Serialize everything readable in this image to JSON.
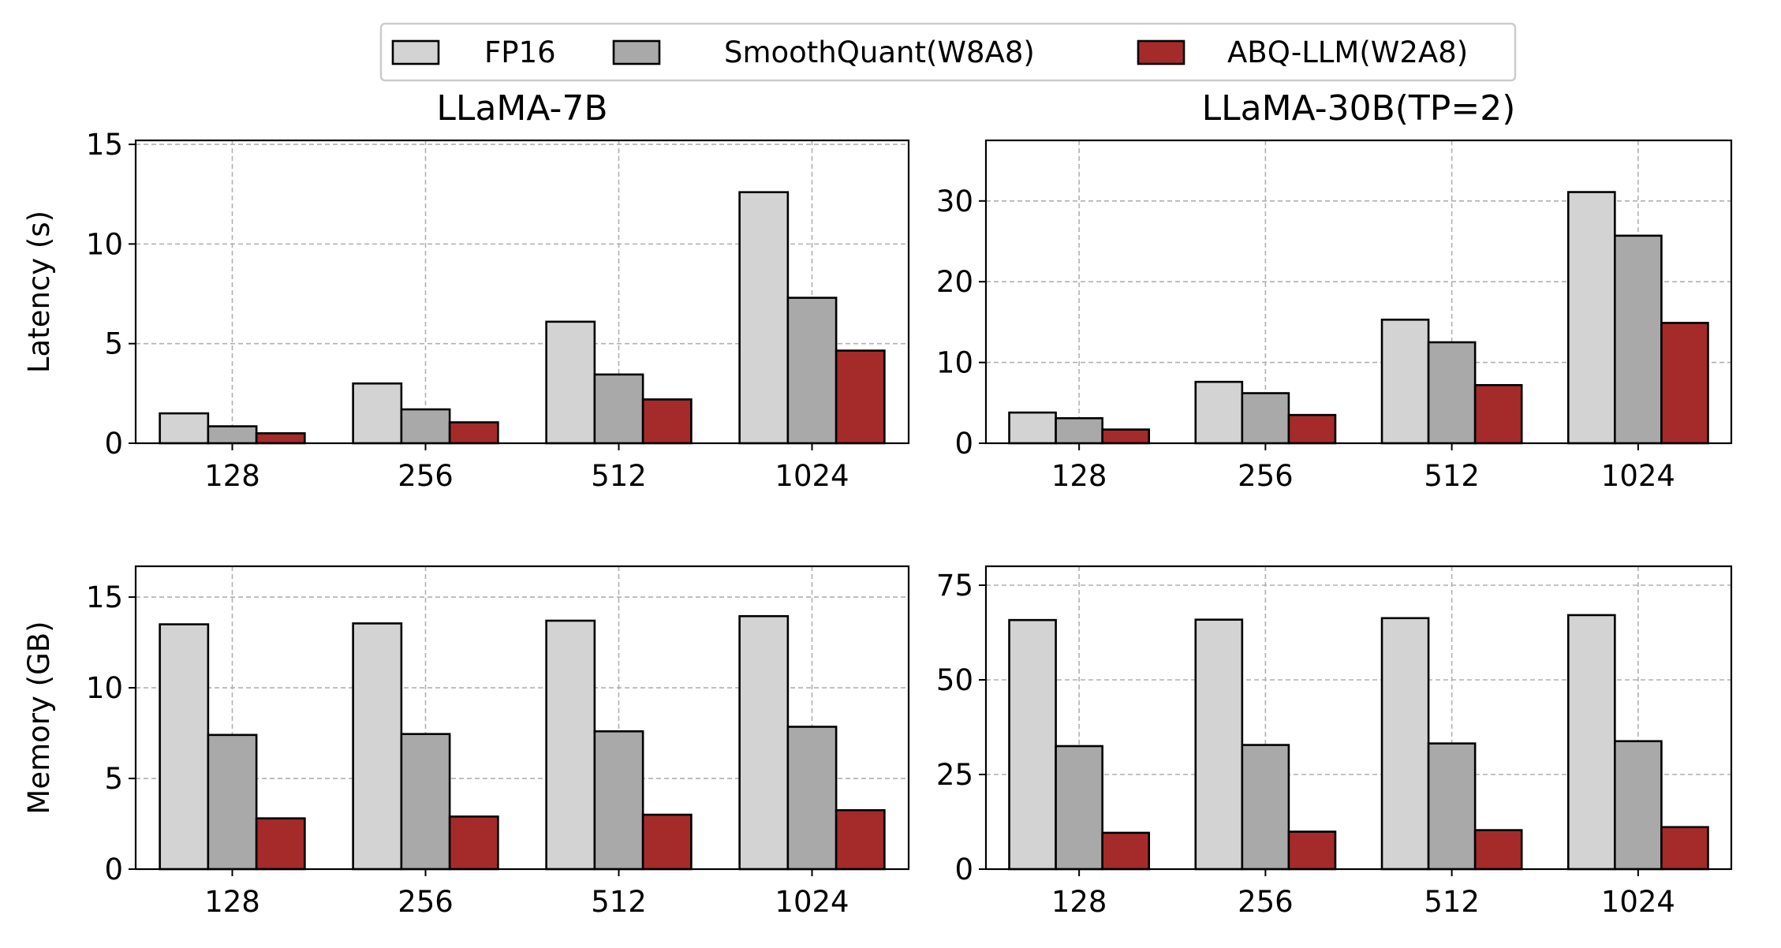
{
  "legend": {
    "items": [
      {
        "label": "FP16",
        "color": "#d3d3d3"
      },
      {
        "label": "SmoothQuant(W8A8)",
        "color": "#a9a9a9"
      },
      {
        "label": "ABQ-LLM(W2A8)",
        "color": "#a52a2a"
      }
    ]
  },
  "chart_data": [
    {
      "type": "bar",
      "title": "LLaMA-7B",
      "xlabel": "",
      "ylabel": "Latency (s)",
      "categories": [
        "128",
        "256",
        "512",
        "1024"
      ],
      "ylim": [
        0,
        15.2
      ],
      "yticks": [
        0,
        5,
        10,
        15
      ],
      "series": [
        {
          "name": "FP16",
          "values": [
            1.5,
            3.0,
            6.1,
            12.6
          ]
        },
        {
          "name": "SmoothQuant(W8A8)",
          "values": [
            0.85,
            1.7,
            3.45,
            7.3
          ]
        },
        {
          "name": "ABQ-LLM(W2A8)",
          "values": [
            0.5,
            1.05,
            2.2,
            4.65
          ]
        }
      ]
    },
    {
      "type": "bar",
      "title": "LLaMA-30B(TP=2)",
      "xlabel": "",
      "ylabel": "",
      "categories": [
        "128",
        "256",
        "512",
        "1024"
      ],
      "ylim": [
        0,
        37.5
      ],
      "yticks": [
        0,
        10,
        20,
        30
      ],
      "series": [
        {
          "name": "FP16",
          "values": [
            3.8,
            7.6,
            15.3,
            31.1
          ]
        },
        {
          "name": "SmoothQuant(W8A8)",
          "values": [
            3.1,
            6.2,
            12.5,
            25.7
          ]
        },
        {
          "name": "ABQ-LLM(W2A8)",
          "values": [
            1.7,
            3.5,
            7.2,
            14.9
          ]
        }
      ]
    },
    {
      "type": "bar",
      "title": "",
      "xlabel": "",
      "ylabel": "Memory (GB)",
      "categories": [
        "128",
        "256",
        "512",
        "1024"
      ],
      "ylim": [
        0,
        16.7
      ],
      "yticks": [
        0,
        5,
        10,
        15
      ],
      "series": [
        {
          "name": "FP16",
          "values": [
            13.5,
            13.55,
            13.7,
            13.95
          ]
        },
        {
          "name": "SmoothQuant(W8A8)",
          "values": [
            7.4,
            7.45,
            7.6,
            7.85
          ]
        },
        {
          "name": "ABQ-LLM(W2A8)",
          "values": [
            2.8,
            2.9,
            3.0,
            3.25
          ]
        }
      ]
    },
    {
      "type": "bar",
      "title": "",
      "xlabel": "",
      "ylabel": "",
      "categories": [
        "128",
        "256",
        "512",
        "1024"
      ],
      "ylim": [
        0,
        80
      ],
      "yticks": [
        0,
        25,
        50,
        75
      ],
      "series": [
        {
          "name": "FP16",
          "values": [
            65.8,
            65.9,
            66.3,
            67.1
          ]
        },
        {
          "name": "SmoothQuant(W8A8)",
          "values": [
            32.5,
            32.8,
            33.2,
            33.8
          ]
        },
        {
          "name": "ABQ-LLM(W2A8)",
          "values": [
            9.6,
            9.9,
            10.3,
            11.1
          ]
        }
      ]
    }
  ]
}
